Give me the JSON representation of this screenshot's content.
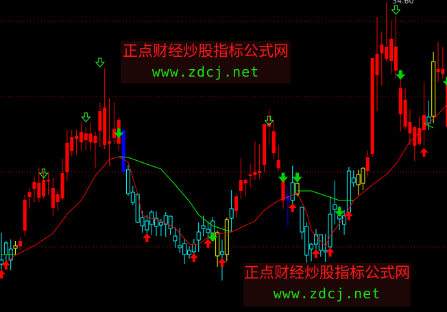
{
  "watermarks": [
    {
      "cn": "正点财经炒股指标公式网",
      "url": "www.zdcj.net"
    },
    {
      "cn": "正点财经炒股指标公式网",
      "url": "www.zdcj.net"
    }
  ],
  "colors": {
    "background": "#000000",
    "up": "#ff0000",
    "down": "#00ffff",
    "special_yellow": "#ffff00",
    "special_blue": "#0000ff",
    "ma_red": "#ff0000",
    "ma_green": "#00ff00",
    "grid": "#c00000",
    "buy_arrow": "#ff0000",
    "sell_arrow": "#00d000"
  },
  "chart_data": {
    "type": "candlestick",
    "title": "",
    "max_price_label": "34.60",
    "ylim": [
      11.95,
      34.75
    ],
    "gridlines": [
      33.2,
      27.7,
      22.2,
      16.7
    ],
    "grid": true,
    "ohlc_fields": [
      "open",
      "high",
      "low",
      "close"
    ],
    "candles": [
      [
        15.75,
        17.75,
        14.75,
        15.45
      ],
      [
        17.0,
        17.15,
        15.25,
        16.15
      ],
      [
        16.55,
        17.25,
        15.0,
        15.75
      ],
      [
        16.6,
        17.15,
        16.15,
        16.8
      ],
      [
        16.75,
        17.4,
        16.5,
        17.15
      ],
      [
        17.9,
        20.5,
        17.5,
        20.15
      ],
      [
        20.35,
        21.0,
        19.5,
        20.7
      ],
      [
        20.95,
        21.85,
        20.0,
        21.45
      ],
      [
        20.3,
        22.5,
        20.0,
        21.4
      ],
      [
        20.4,
        22.25,
        20.25,
        21.6
      ],
      [
        21.5,
        22.15,
        20.5,
        21.6
      ],
      [
        19.55,
        21.75,
        19.0,
        21.0
      ],
      [
        20.0,
        20.85,
        19.4,
        20.55
      ],
      [
        20.25,
        23.15,
        20.15,
        22.1
      ],
      [
        22.15,
        25.25,
        21.5,
        24.3
      ],
      [
        23.7,
        25.25,
        23.35,
        24.75
      ],
      [
        24.6,
        25.25,
        23.45,
        24.8
      ],
      [
        24.35,
        25.8,
        23.75,
        25.1
      ],
      [
        24.5,
        25.45,
        23.75,
        25.0
      ],
      [
        24.35,
        25.8,
        23.75,
        25.0
      ],
      [
        24.3,
        25.1,
        22.5,
        24.8
      ],
      [
        25.2,
        27.25,
        24.0,
        26.65
      ],
      [
        24.15,
        29.75,
        23.85,
        26.9
      ],
      [
        24.25,
        27.6,
        22.6,
        24.45
      ],
      [
        24.65,
        27.25,
        24.25,
        25.35
      ],
      [
        24.25,
        26.15,
        23.75,
        26.0
      ],
      [
        25.25,
        25.3,
        22.0,
        22.2
      ],
      [
        22.35,
        22.7,
        20.45,
        20.6
      ],
      [
        20.7,
        21.15,
        19.75,
        19.95
      ],
      [
        20.55,
        20.65,
        18.45,
        18.5
      ],
      [
        18.85,
        19.35,
        17.75,
        18.25
      ],
      [
        18.6,
        19.05,
        17.25,
        17.95
      ],
      [
        19.25,
        19.4,
        17.6,
        18.35
      ],
      [
        18.8,
        19.3,
        17.5,
        18.2
      ],
      [
        18.5,
        18.75,
        17.5,
        18.3
      ],
      [
        19.0,
        19.25,
        17.45,
        18.35
      ],
      [
        18.95,
        19.0,
        17.6,
        18.05
      ],
      [
        17.5,
        18.1,
        16.65,
        17.15
      ],
      [
        16.8,
        18.1,
        16.25,
        16.65
      ],
      [
        16.95,
        17.25,
        15.45,
        16.15
      ],
      [
        16.45,
        16.75,
        15.85,
        16.15
      ],
      [
        16.9,
        17.3,
        15.6,
        16.35
      ],
      [
        17.8,
        18.5,
        16.35,
        17.2
      ],
      [
        18.25,
        19.0,
        17.5,
        18.05
      ],
      [
        18.0,
        18.5,
        17.25,
        17.75
      ],
      [
        18.6,
        18.9,
        17.1,
        17.5
      ],
      [
        17.75,
        17.9,
        15.25,
        16.05
      ],
      [
        16.35,
        17.25,
        14.25,
        16.15
      ],
      [
        18.7,
        18.85,
        15.65,
        16.15
      ],
      [
        18.8,
        20.85,
        17.85,
        19.5
      ],
      [
        19.35,
        20.6,
        18.85,
        20.4
      ],
      [
        20.8,
        23.2,
        20.2,
        21.6
      ],
      [
        21.35,
        21.65,
        20.4,
        21.6
      ],
      [
        21.9,
        22.8,
        21.05,
        22.0
      ],
      [
        21.95,
        24.4,
        21.6,
        22.2
      ],
      [
        22.1,
        24.25,
        21.65,
        22.25
      ],
      [
        22.7,
        25.7,
        22.15,
        25.7
      ],
      [
        25.5,
        26.75,
        24.15,
        25.75
      ],
      [
        23.55,
        26.0,
        23.15,
        25.15
      ],
      [
        22.45,
        24.15,
        22.25,
        23.05
      ],
      [
        22.1,
        22.1,
        19.5,
        20.1
      ],
      [
        20.45,
        21.1,
        18.2,
        20.1
      ],
      [
        21.4,
        22.65,
        19.85,
        20.1
      ],
      [
        21.35,
        22.1,
        20.4,
        20.55
      ],
      [
        19.6,
        19.65,
        17.25,
        17.8
      ],
      [
        18.2,
        18.5,
        15.55,
        16.1
      ],
      [
        16.9,
        17.0,
        15.65,
        16.55
      ],
      [
        17.6,
        18.0,
        16.1,
        16.9
      ],
      [
        17.6,
        17.6,
        16.0,
        16.45
      ],
      [
        16.45,
        17.65,
        15.6,
        16.35
      ],
      [
        19.1,
        20.4,
        16.1,
        16.7
      ],
      [
        19.8,
        21.55,
        18.35,
        19.45
      ],
      [
        19.0,
        19.7,
        17.95,
        18.75
      ],
      [
        19.0,
        19.4,
        17.6,
        18.35
      ],
      [
        22.25,
        22.55,
        18.95,
        19.25
      ],
      [
        21.75,
        22.3,
        21.1,
        21.4
      ],
      [
        21.25,
        22.35,
        20.5,
        22.0
      ],
      [
        21.35,
        22.55,
        20.85,
        22.45
      ],
      [
        22.25,
        23.75,
        21.85,
        23.25
      ],
      [
        23.5,
        30.5,
        23.3,
        30.5
      ],
      [
        29.25,
        33.5,
        26.65,
        30.8
      ],
      [
        30.85,
        32.45,
        28.5,
        31.5
      ],
      [
        30.45,
        34.6,
        30.25,
        31.3
      ],
      [
        30.3,
        33.25,
        29.35,
        31.9
      ],
      [
        29.6,
        33.55,
        29.0,
        31.35
      ],
      [
        26.4,
        29.65,
        25.15,
        28.3
      ],
      [
        25.5,
        28.3,
        25.3,
        27.45
      ],
      [
        25.0,
        26.8,
        24.15,
        25.85
      ],
      [
        25.45,
        25.55,
        23.0,
        24.1
      ],
      [
        25.4,
        26.25,
        24.1,
        24.25
      ],
      [
        25.25,
        28.75,
        24.1,
        26.35
      ],
      [
        25.75,
        27.4,
        25.25,
        26.2
      ],
      [
        26.25,
        30.95,
        25.75,
        30.25
      ],
      [
        29.5,
        31.7,
        28.75,
        29.7
      ],
      [
        29.35,
        31.3,
        29.0,
        29.7
      ],
      [
        29.15,
        29.15,
        25.5,
        25.5
      ]
    ],
    "candle_colors": "cccyrrrrrrrrrrrrrrrrrrrrrrbcccccccccccccccccccycycrrrrrrrrrrrbcyccccccccccccyyrrrrrrrrrrrrrcyrrrrrb",
    "ma_red": [
      [
        0,
        15.35
      ],
      [
        3,
        16.1
      ],
      [
        7,
        16.8
      ],
      [
        11,
        17.7
      ],
      [
        14,
        19.1
      ],
      [
        17,
        20.1
      ],
      [
        20,
        21.9
      ],
      [
        23,
        23.1
      ],
      [
        25,
        23.3
      ],
      [
        27,
        22.9
      ],
      [
        29,
        20.6
      ],
      [
        30,
        19.0
      ],
      [
        34,
        18.6
      ],
      [
        37,
        18.1
      ],
      [
        40,
        16.9
      ],
      [
        42,
        16.9
      ],
      [
        44,
        17.4
      ],
      [
        46,
        17.65
      ],
      [
        49,
        17.8
      ],
      [
        54,
        18.6
      ],
      [
        56,
        19.4
      ],
      [
        59,
        20.1
      ],
      [
        61,
        20.35
      ],
      [
        63,
        20.65
      ],
      [
        65,
        19.25
      ],
      [
        66,
        17.9
      ],
      [
        69,
        16.75
      ],
      [
        70,
        17.5
      ],
      [
        73,
        18.9
      ],
      [
        75,
        20.1
      ],
      [
        79,
        21.25
      ],
      [
        82,
        22.0
      ],
      [
        84,
        22.75
      ],
      [
        87,
        24.4
      ],
      [
        90,
        25.4
      ],
      [
        93,
        26.4
      ],
      [
        95,
        27.15
      ]
    ],
    "ma_green_segments": [
      [
        [
          0,
          16.15
        ],
        [
          3,
          16.15
        ]
      ],
      [
        [
          25,
          23.3
        ],
        [
          27,
          23.25
        ],
        [
          31,
          22.75
        ],
        [
          34,
          22.4
        ],
        [
          37,
          21.25
        ],
        [
          40,
          20.05
        ],
        [
          42,
          19.05
        ],
        [
          45,
          18.25
        ],
        [
          48,
          17.9
        ],
        [
          49,
          17.85
        ]
      ],
      [
        [
          63,
          20.8
        ],
        [
          66,
          20.8
        ],
        [
          69,
          20.45
        ],
        [
          72,
          20.1
        ],
        [
          75,
          20.1
        ]
      ],
      [
        [
          90,
          25.75
        ],
        [
          92,
          25.4
        ]
      ]
    ],
    "signals": {
      "hollow_down": [
        [
          9,
          22.05
        ],
        [
          18,
          26.15
        ],
        [
          21,
          30.15
        ],
        [
          57,
          25.9
        ],
        [
          84,
          34.0
        ]
      ],
      "filled_down": [
        [
          25,
          25.0
        ],
        [
          45,
          17.4
        ],
        [
          60,
          21.75
        ],
        [
          63,
          21.75
        ],
        [
          72,
          19.25
        ],
        [
          85,
          29.25
        ],
        [
          95,
          28.75
        ]
      ],
      "up": [
        [
          0,
          14.75
        ],
        [
          1,
          15.4
        ],
        [
          31,
          17.4
        ],
        [
          41,
          15.95
        ],
        [
          44,
          17.0
        ],
        [
          47,
          15.6
        ],
        [
          62,
          19.6
        ],
        [
          67,
          16.25
        ],
        [
          70,
          16.35
        ],
        [
          74,
          19.0
        ],
        [
          90,
          23.65
        ]
      ]
    }
  }
}
